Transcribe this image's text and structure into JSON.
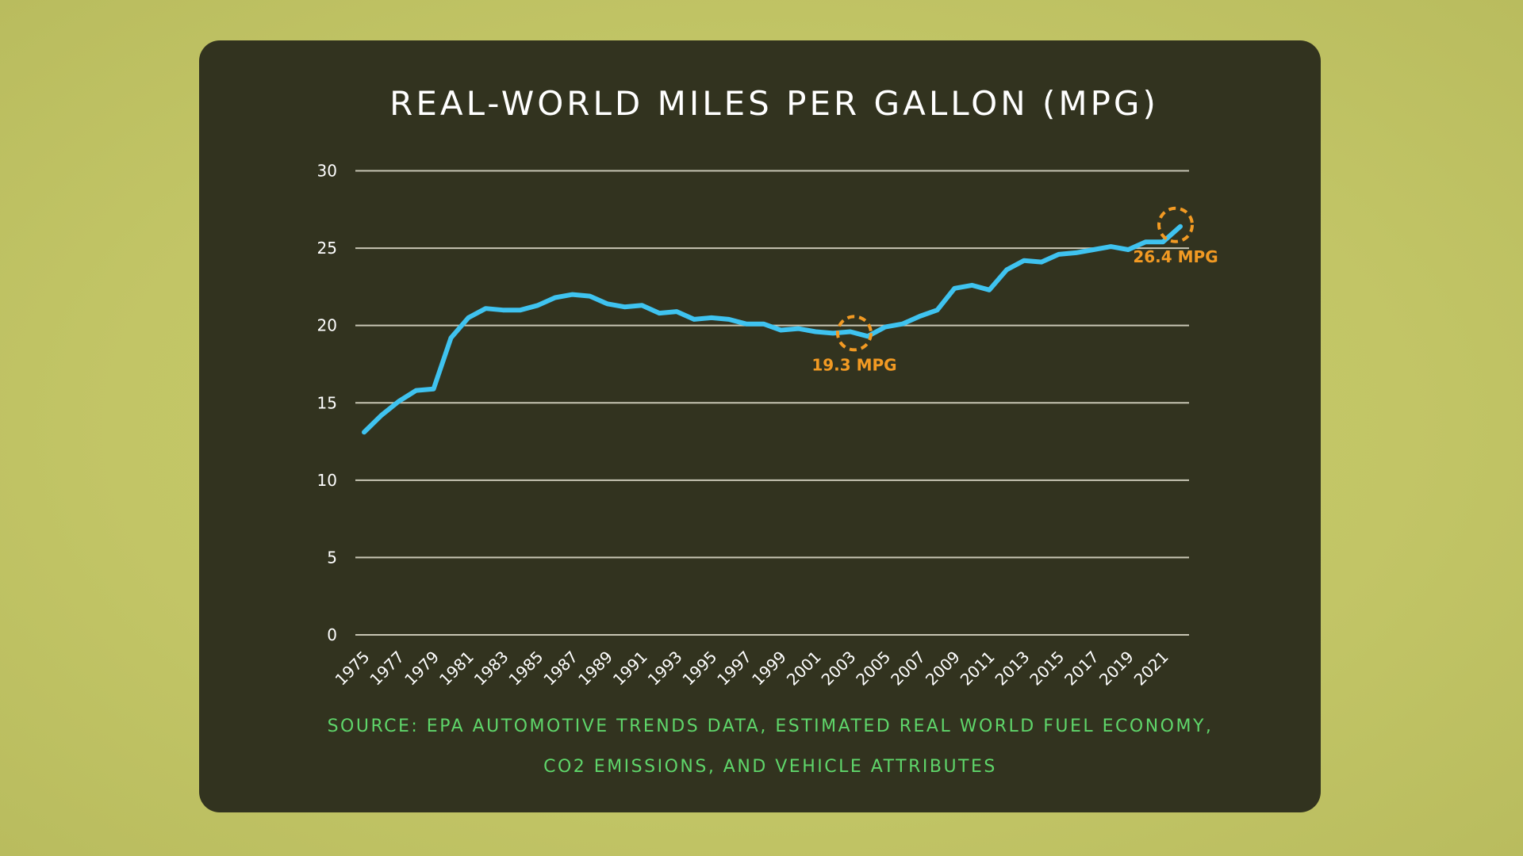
{
  "chart_data": {
    "type": "line",
    "title": "REAL-WORLD MILES PER GALLON (MPG)",
    "xlabel": "",
    "ylabel": "",
    "ylim": [
      0,
      30
    ],
    "yticks": [
      "0",
      "5",
      "10",
      "15",
      "20",
      "25",
      "30"
    ],
    "xticks": [
      "1975",
      "1977",
      "1979",
      "1981",
      "1983",
      "1985",
      "1987",
      "1989",
      "1991",
      "1993",
      "1995",
      "1997",
      "1999",
      "2001",
      "2003",
      "2005",
      "2007",
      "2009",
      "2011",
      "2013",
      "2015",
      "2017",
      "2019",
      "2021"
    ],
    "grid": true,
    "line_color": "#3fc3f0",
    "annotation_color": "#f29a23",
    "x": [
      1975,
      1976,
      1977,
      1978,
      1979,
      1980,
      1981,
      1982,
      1983,
      1984,
      1985,
      1986,
      1987,
      1988,
      1989,
      1990,
      1991,
      1992,
      1993,
      1994,
      1995,
      1996,
      1997,
      1998,
      1999,
      2000,
      2001,
      2002,
      2003,
      2004,
      2005,
      2006,
      2007,
      2008,
      2009,
      2010,
      2011,
      2012,
      2013,
      2014,
      2015,
      2016,
      2017,
      2018,
      2019,
      2020,
      2021,
      2022
    ],
    "series": [
      {
        "values": [
          13.1,
          14.2,
          15.1,
          15.8,
          15.9,
          19.2,
          20.5,
          21.1,
          21.0,
          21.0,
          21.3,
          21.8,
          22.0,
          21.9,
          21.4,
          21.2,
          21.3,
          20.8,
          20.9,
          20.4,
          20.5,
          20.4,
          20.1,
          20.1,
          19.7,
          19.8,
          19.6,
          19.5,
          19.6,
          19.3,
          19.9,
          20.1,
          20.6,
          21.0,
          22.4,
          22.6,
          22.3,
          23.6,
          24.2,
          24.1,
          24.6,
          24.7,
          24.9,
          25.1,
          24.9,
          25.4,
          25.4,
          26.4
        ]
      }
    ],
    "annotations": [
      {
        "x": 2003.5,
        "y": 19.4,
        "label": "19.3 MPG",
        "label_position": "below"
      },
      {
        "x": 2022,
        "y": 26.4,
        "label": "26.4 MPG",
        "label_position": "below"
      }
    ],
    "source": [
      "SOURCE: EPA AUTOMOTIVE TRENDS DATA, ESTIMATED REAL WORLD FUEL ECONOMY,",
      "CO2 EMISSIONS, AND VEHICLE ATTRIBUTES"
    ]
  }
}
